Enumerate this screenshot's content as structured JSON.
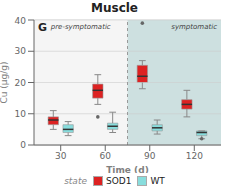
{
  "chart_data": {
    "type": "box",
    "title": "Muscle",
    "x_label": "Time (d)",
    "y_label": "Cu (µg/g)",
    "x": [
      30,
      60,
      90,
      120
    ],
    "xlim": [
      12,
      138
    ],
    "xticks": [
      30,
      60,
      90,
      120
    ],
    "ylim": [
      0,
      40
    ],
    "yticks": [
      0,
      10,
      20,
      30,
      40
    ],
    "grid": true,
    "annotations": [
      "G",
      "state"
    ],
    "regions": [
      {
        "label": "pre-symptomatic",
        "x": [
          12,
          75
        ],
        "color": "#f5f5f5"
      },
      {
        "label": "symptomatic",
        "x": [
          75,
          138
        ],
        "color": "#cde0e0"
      }
    ],
    "series": [
      {
        "name": "SOD1",
        "color": "#dd2222",
        "values": [
          {
            "q1": 6.5,
            "median": 8.0,
            "q3": 9.0,
            "whislo": 5.0,
            "whishi": 11.0,
            "fliers": []
          },
          {
            "q1": 15.0,
            "median": 17.5,
            "q3": 19.5,
            "whislo": 13.0,
            "whishi": 22.5,
            "fliers": [
              9.0
            ]
          },
          {
            "q1": 20.0,
            "median": 22.0,
            "q3": 25.5,
            "whislo": 18.0,
            "whishi": 27.0,
            "fliers": [
              39.0
            ]
          },
          {
            "q1": 11.5,
            "median": 13.0,
            "q3": 14.5,
            "whislo": 9.0,
            "whishi": 17.5,
            "fliers": []
          }
        ]
      },
      {
        "name": "WT",
        "color": "#88dddd",
        "values": [
          {
            "q1": 4.0,
            "median": 5.0,
            "q3": 6.5,
            "whislo": 3.0,
            "whishi": 7.5,
            "fliers": []
          },
          {
            "q1": 5.0,
            "median": 6.0,
            "q3": 7.0,
            "whislo": 4.0,
            "whishi": 10.5,
            "fliers": []
          },
          {
            "q1": 4.5,
            "median": 5.5,
            "q3": 6.5,
            "whislo": 3.5,
            "whishi": 8.0,
            "fliers": []
          },
          {
            "q1": 3.0,
            "median": 4.0,
            "q3": 4.5,
            "whislo": 2.0,
            "whishi": 4.5,
            "fliers": [
              2.0
            ]
          }
        ]
      }
    ]
  }
}
